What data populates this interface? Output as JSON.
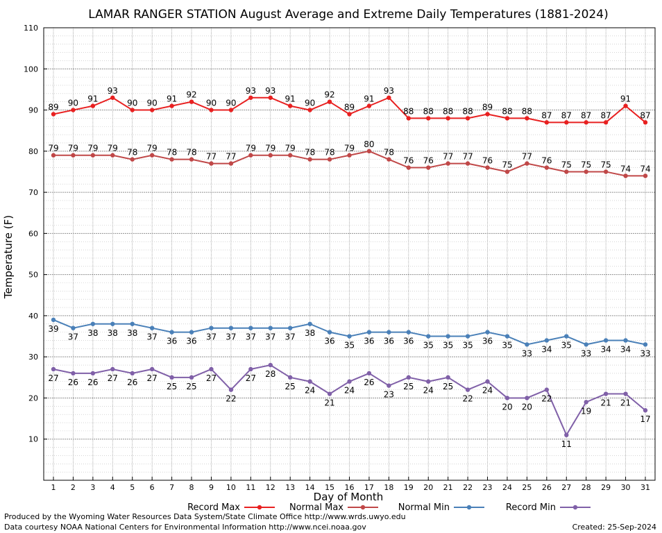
{
  "chart_data": {
    "type": "line",
    "title": "LAMAR RANGER STATION August Average and Extreme Daily Temperatures (1881-2024)",
    "xlabel": "Day of Month",
    "ylabel": "Temperature (F)",
    "xlim": [
      1,
      31
    ],
    "ylim": [
      0,
      110
    ],
    "yticks": [
      10,
      20,
      30,
      40,
      50,
      60,
      70,
      80,
      90,
      100,
      110
    ],
    "grid": true,
    "legend_position": "bottom",
    "x": [
      1,
      2,
      3,
      4,
      5,
      6,
      7,
      8,
      9,
      10,
      11,
      12,
      13,
      14,
      15,
      16,
      17,
      18,
      19,
      20,
      21,
      22,
      23,
      24,
      25,
      26,
      27,
      28,
      29,
      30,
      31
    ],
    "series": [
      {
        "name": "Record Max",
        "color": "#e82020",
        "label_position": "above",
        "values": [
          89,
          90,
          91,
          93,
          90,
          90,
          91,
          92,
          90,
          90,
          93,
          93,
          91,
          90,
          92,
          89,
          91,
          93,
          88,
          88,
          88,
          88,
          89,
          88,
          88,
          87,
          87,
          87,
          87,
          91,
          87
        ]
      },
      {
        "name": "Normal Max",
        "color": "#c04848",
        "label_position": "above",
        "values": [
          79,
          79,
          79,
          79,
          78,
          79,
          78,
          78,
          77,
          77,
          79,
          79,
          79,
          78,
          78,
          79,
          80,
          78,
          76,
          76,
          77,
          77,
          76,
          75,
          77,
          76,
          75,
          75,
          75,
          74,
          74
        ]
      },
      {
        "name": "Normal Min",
        "color": "#4a80b8",
        "label_position": "below",
        "values": [
          39,
          37,
          38,
          38,
          38,
          37,
          36,
          36,
          37,
          37,
          37,
          37,
          37,
          38,
          36,
          35,
          36,
          36,
          36,
          35,
          35,
          35,
          36,
          35,
          33,
          34,
          35,
          33,
          34,
          34,
          33
        ]
      },
      {
        "name": "Record Min",
        "color": "#8060a8",
        "label_position": "below",
        "values": [
          27,
          26,
          26,
          27,
          26,
          27,
          25,
          25,
          27,
          22,
          27,
          28,
          25,
          24,
          21,
          24,
          26,
          23,
          25,
          24,
          25,
          22,
          24,
          20,
          20,
          22,
          11,
          19,
          21,
          21,
          17
        ]
      }
    ]
  },
  "footer": {
    "credit_line": "Produced by the Wyoming Water Resources Data System/State Climate Office http://www.wrds.uwyo.edu",
    "source_line": "Data courtesy NOAA National Centers for Environmental Information http://www.ncei.noaa.gov",
    "created": "Created:  25-Sep-2024"
  }
}
